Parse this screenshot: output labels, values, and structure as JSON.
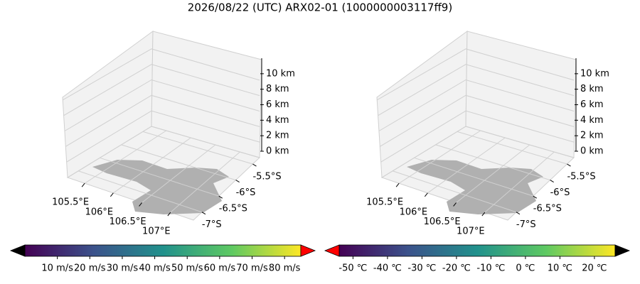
{
  "title": "2026/08/22 (UTC) ARX02-01 (1000000003117ff9)",
  "chart_data": [
    {
      "type": "quiver3d",
      "xlim": [
        105.2,
        107.4
      ],
      "xticks": [
        {
          "value": 105.5,
          "label": "105.5°E"
        },
        {
          "value": 106,
          "label": "106°E"
        },
        {
          "value": 106.5,
          "label": "106.5°E"
        },
        {
          "value": 107,
          "label": "107°E"
        }
      ],
      "ylim": [
        -7.25,
        -5.3
      ],
      "yticks": [
        {
          "value": -5.5,
          "label": "-5.5°S"
        },
        {
          "value": -6,
          "label": "-6°S"
        },
        {
          "value": -6.5,
          "label": "-6.5°S"
        },
        {
          "value": -7,
          "label": "-7°S"
        }
      ],
      "zlim": [
        0,
        12
      ],
      "zticks": [
        {
          "value": 0,
          "label": "0 km"
        },
        {
          "value": 2,
          "label": "2 km"
        },
        {
          "value": 4,
          "label": "4 km"
        },
        {
          "value": 6,
          "label": "6 km"
        },
        {
          "value": 8,
          "label": "8 km"
        },
        {
          "value": 10,
          "label": "10 km"
        }
      ],
      "colorbar": {
        "lim": [
          0,
          85
        ],
        "ticks": [
          {
            "value": 10,
            "label": "10 m/s"
          },
          {
            "value": 20,
            "label": "20 m/s"
          },
          {
            "value": 30,
            "label": "30 m/s"
          },
          {
            "value": 40,
            "label": "40 m/s"
          },
          {
            "value": 50,
            "label": "50 m/s"
          },
          {
            "value": 60,
            "label": "60 m/s"
          },
          {
            "value": 70,
            "label": "70 m/s"
          },
          {
            "value": 80,
            "label": "80 m/s"
          }
        ],
        "colormap": [
          "#440154",
          "#3b528b",
          "#21918c",
          "#5ec962",
          "#fde725"
        ],
        "extend_colors": [
          "#000000",
          "#ff0000"
        ]
      }
    },
    {
      "type": "voxel3d",
      "xlim": [
        105.2,
        107.4
      ],
      "xticks": [
        {
          "value": 105.5,
          "label": "105.5°E"
        },
        {
          "value": 106,
          "label": "106°E"
        },
        {
          "value": 106.5,
          "label": "106.5°E"
        },
        {
          "value": 107,
          "label": "107°E"
        }
      ],
      "ylim": [
        -7.25,
        -5.3
      ],
      "yticks": [
        {
          "value": -5.5,
          "label": "-5.5°S"
        },
        {
          "value": -6,
          "label": "-6°S"
        },
        {
          "value": -6.5,
          "label": "-6.5°S"
        },
        {
          "value": -7,
          "label": "-7°S"
        }
      ],
      "zlim": [
        0,
        12
      ],
      "zticks": [
        {
          "value": 0,
          "label": "0 km"
        },
        {
          "value": 2,
          "label": "2 km"
        },
        {
          "value": 4,
          "label": "4 km"
        },
        {
          "value": 6,
          "label": "6 km"
        },
        {
          "value": 8,
          "label": "8 km"
        },
        {
          "value": 10,
          "label": "10 km"
        }
      ],
      "colorbar": {
        "lim": [
          -54,
          26
        ],
        "ticks": [
          {
            "value": -50,
            "label": "-50 ℃"
          },
          {
            "value": -40,
            "label": "-40 ℃"
          },
          {
            "value": -30,
            "label": "-30 ℃"
          },
          {
            "value": -20,
            "label": "-20 ℃"
          },
          {
            "value": -10,
            "label": "-10 ℃"
          },
          {
            "value": 0,
            "label": "0 ℃"
          },
          {
            "value": 10,
            "label": "10 ℃"
          },
          {
            "value": 20,
            "label": "20 ℃"
          }
        ],
        "colormap": [
          "#440154",
          "#3b528b",
          "#21918c",
          "#5ec962",
          "#fde725"
        ],
        "extend_colors": [
          "#ff0000",
          "#000000"
        ]
      }
    }
  ]
}
